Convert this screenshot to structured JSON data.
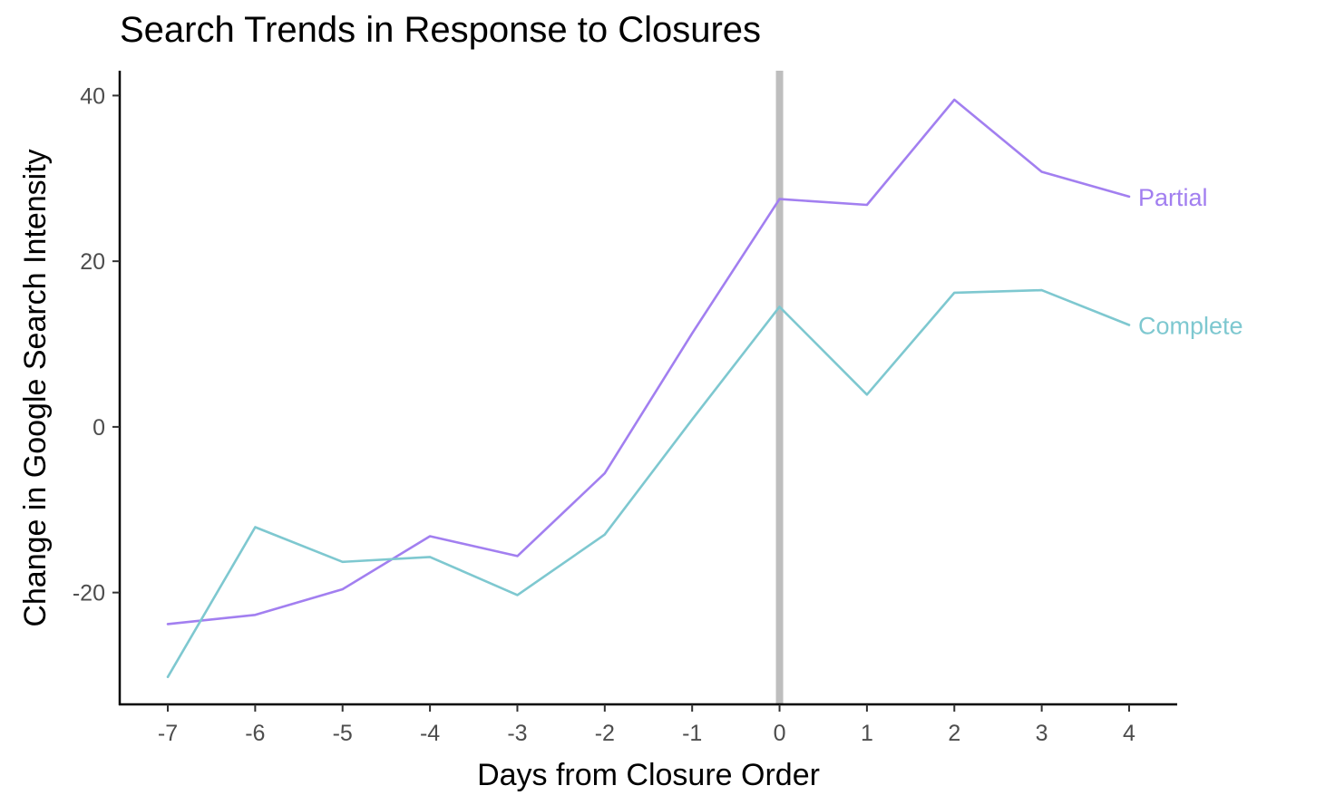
{
  "chart_data": {
    "type": "line",
    "title": "Search Trends in Response to Closures",
    "xlabel": "Days from Closure Order",
    "ylabel": "Change in Google Search Intensity",
    "x": [
      -7,
      -6,
      -5,
      -4,
      -3,
      -2,
      -1,
      0,
      1,
      2,
      3,
      4
    ],
    "x_ticks": [
      "-7",
      "-6",
      "-5",
      "-4",
      "-3",
      "-2",
      "-1",
      "0",
      "1",
      "2",
      "3",
      "4"
    ],
    "y_ticks": [
      "40",
      "20",
      "0",
      "-20"
    ],
    "xlim": [
      -7.55,
      4.55
    ],
    "ylim": [
      -33.5,
      43
    ],
    "vline": {
      "x": 0,
      "color": "#bebebe"
    },
    "grid": false,
    "legend": "direct labels at line ends",
    "series": [
      {
        "name": "Partial",
        "color": "#a27ff0",
        "values": [
          -23.8,
          -22.7,
          -19.6,
          -13.2,
          -15.6,
          -5.6,
          11.3,
          27.5,
          26.8,
          39.5,
          30.8,
          27.8
        ]
      },
      {
        "name": "Complete",
        "color": "#7ec8d0",
        "values": [
          -30.2,
          -12.1,
          -16.3,
          -15.7,
          -20.3,
          -13.0,
          0.9,
          14.5,
          3.9,
          16.2,
          16.5,
          12.3
        ]
      }
    ]
  }
}
